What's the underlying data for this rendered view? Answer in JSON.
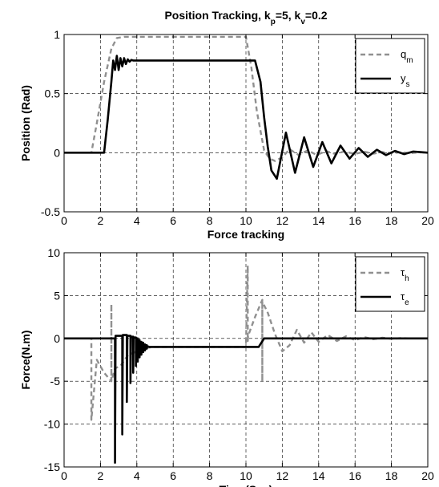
{
  "chart_data": [
    {
      "type": "line",
      "title": "Position Tracking, k_p=5, k_v=0.2",
      "title_parts": [
        "Position Tracking, k",
        "p",
        "=5, k",
        "v",
        "=0.2"
      ],
      "xlabel": "Force tracking",
      "ylabel": "Position (Rad)",
      "xlim": [
        0,
        20
      ],
      "ylim": [
        -0.5,
        1
      ],
      "xticks": [
        0,
        2,
        4,
        6,
        8,
        10,
        12,
        14,
        16,
        18,
        20
      ],
      "yticks": [
        -0.5,
        0,
        0.5,
        1
      ],
      "ytick_labels": [
        "-0.5",
        "0",
        "0.5",
        "1"
      ],
      "grid": true,
      "legend_position": "top-right",
      "series": [
        {
          "name": "q_m",
          "name_parts": [
            "q",
            "m"
          ],
          "color": "#909090",
          "dash": "dashed",
          "x": [
            0,
            1.5,
            1.8,
            2.2,
            2.6,
            2.9,
            3.3,
            4,
            6,
            8,
            10,
            10.3,
            10.6,
            11,
            11.3,
            11.6,
            12,
            12.4,
            12.9,
            13.4,
            13.9,
            14.4,
            14.9,
            15.4,
            16,
            16.5,
            17,
            17.5,
            18,
            18.5,
            19,
            19.5,
            20
          ],
          "y": [
            0,
            0,
            0.25,
            0.6,
            0.88,
            0.97,
            0.98,
            0.98,
            0.98,
            0.98,
            0.98,
            0.72,
            0.35,
            0.02,
            -0.05,
            -0.07,
            -0.04,
            0.03,
            -0.02,
            0.02,
            -0.02,
            0.015,
            -0.01,
            0.01,
            -0.01,
            0.008,
            -0.008,
            0.005,
            -0.005,
            0.004,
            -0.004,
            0.003,
            0
          ]
        },
        {
          "name": "y_s",
          "name_parts": [
            "y",
            "s"
          ],
          "color": "#000000",
          "dash": "solid",
          "x": [
            0,
            2.2,
            2.4,
            2.6,
            2.7,
            2.8,
            2.9,
            3.0,
            3.1,
            3.2,
            3.3,
            3.4,
            3.5,
            3.6,
            3.7,
            3.8,
            4,
            6,
            8,
            10,
            10.5,
            10.8,
            11.0,
            11.2,
            11.4,
            11.7,
            12.2,
            12.7,
            13.2,
            13.7,
            14.2,
            14.7,
            15.2,
            15.7,
            16.2,
            16.7,
            17.2,
            17.7,
            18.2,
            18.7,
            19.2,
            19.6,
            20
          ],
          "y": [
            0,
            0,
            0.28,
            0.6,
            0.78,
            0.7,
            0.82,
            0.7,
            0.8,
            0.73,
            0.8,
            0.75,
            0.79,
            0.77,
            0.785,
            0.78,
            0.78,
            0.78,
            0.78,
            0.78,
            0.78,
            0.6,
            0.3,
            0.05,
            -0.15,
            -0.22,
            0.17,
            -0.17,
            0.13,
            -0.12,
            0.09,
            -0.09,
            0.06,
            -0.05,
            0.04,
            -0.035,
            0.025,
            -0.02,
            0.015,
            -0.012,
            0.01,
            0.005,
            0
          ]
        }
      ]
    },
    {
      "type": "line",
      "title": "",
      "xlabel": "Time(Sec)",
      "ylabel": "Force(N.m)",
      "xlim": [
        0,
        20
      ],
      "ylim": [
        -15,
        10
      ],
      "xticks": [
        0,
        2,
        4,
        6,
        8,
        10,
        12,
        14,
        16,
        18,
        20
      ],
      "yticks": [
        -15,
        -10,
        -5,
        0,
        5,
        10
      ],
      "ytick_labels": [
        "-15",
        "-10",
        "-5",
        "0",
        "5",
        "10"
      ],
      "grid": true,
      "legend_position": "top-right",
      "series": [
        {
          "name": "τ_h",
          "name_parts": [
            "τ",
            "h"
          ],
          "color": "#909090",
          "dash": "dashed",
          "x": [
            0,
            1.5,
            1.5,
            1.5,
            1.8,
            2.2,
            2.6,
            2.6,
            2.6,
            2.8,
            3.1,
            3.5,
            3.9,
            4.2,
            4.5,
            5,
            6,
            8,
            10,
            10.1,
            10.1,
            10.12,
            10.5,
            10.9,
            10.9,
            10.9,
            11.2,
            11.6,
            12.0,
            12.4,
            12.8,
            13.2,
            13.6,
            14.0,
            14.5,
            15.0,
            15.5,
            16.0,
            16.5,
            17,
            17.5,
            18,
            18.5,
            19,
            20
          ],
          "y": [
            0,
            0,
            -0.5,
            -9.5,
            -2.5,
            -4.0,
            -5.0,
            4.0,
            -5.0,
            -3.5,
            -3.2,
            -2.0,
            -1.6,
            -1.3,
            -1.1,
            -1.0,
            -1.0,
            -1.0,
            -1.0,
            8.5,
            -0.3,
            0.3,
            2.5,
            4.5,
            -5.0,
            4.3,
            3.0,
            0.5,
            -1.5,
            -0.8,
            1.0,
            -0.5,
            0.7,
            -0.4,
            0.4,
            -0.3,
            0.25,
            -0.2,
            0.15,
            -0.1,
            0.08,
            -0.05,
            0.03,
            0,
            0
          ]
        },
        {
          "name": "τ_e",
          "name_parts": [
            "τ",
            "e"
          ],
          "color": "#000000",
          "dash": "solid",
          "x": [
            0,
            2.8,
            2.8,
            2.83,
            3.2,
            3.2,
            3.23,
            3.45,
            3.45,
            3.48,
            3.65,
            3.65,
            3.68,
            3.8,
            3.8,
            3.82,
            3.95,
            3.95,
            3.97,
            4.05,
            4.05,
            4.07,
            4.15,
            4.15,
            4.17,
            4.25,
            4.25,
            4.27,
            4.35,
            4.35,
            4.37,
            4.45,
            4.45,
            4.47,
            4.55,
            4.55,
            4.57,
            4.7,
            5,
            6,
            8,
            10,
            10.7,
            11.0,
            12,
            14,
            16,
            18,
            20
          ],
          "y": [
            0,
            0,
            -14.5,
            0.3,
            0.3,
            -11.2,
            0.4,
            0.4,
            -7.4,
            0.3,
            0.3,
            -5.2,
            0.2,
            0.2,
            -4.0,
            0.1,
            0.1,
            -3.2,
            0.0,
            0.0,
            -2.7,
            -0.2,
            -0.2,
            -2.2,
            -0.4,
            -0.4,
            -1.9,
            -0.5,
            -0.5,
            -1.6,
            -0.7,
            -0.7,
            -1.4,
            -0.8,
            -0.8,
            -1.2,
            -0.9,
            -1.0,
            -1.0,
            -1.0,
            -1.0,
            -1.0,
            -1.0,
            0,
            0,
            0,
            0,
            0,
            0
          ]
        }
      ]
    }
  ]
}
